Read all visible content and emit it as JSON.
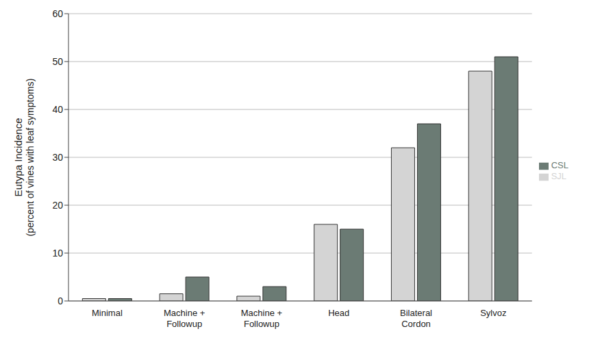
{
  "chart_data": {
    "type": "bar",
    "ylabel": "Eutypa Incidence (percent of vines with leaf symptoms)",
    "categories": [
      "Minimal",
      "Machine + Followup",
      "Machine + Followup",
      "Head",
      "Bilateral Cordon",
      "Sylvoz"
    ],
    "series": [
      {
        "name": "SJL",
        "color": "#d4d4d4",
        "values": [
          0.5,
          1.5,
          1,
          16,
          32,
          48
        ]
      },
      {
        "name": "CSL",
        "color": "#6b7b74",
        "values": [
          0.5,
          5,
          3,
          15,
          37,
          51
        ]
      }
    ],
    "ylim": [
      0,
      60
    ],
    "yticks": [
      0,
      10,
      20,
      30,
      40,
      50,
      60
    ],
    "grid": true,
    "legend": "right"
  }
}
